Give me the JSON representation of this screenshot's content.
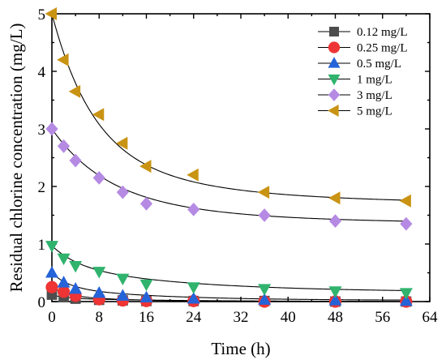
{
  "chart_data": {
    "type": "scatter",
    "xlabel": "Time (h)",
    "ylabel": "Residual chlorine concentration (mg/L)",
    "xlim": [
      0,
      64
    ],
    "ylim": [
      0,
      5
    ],
    "xticks": [
      "0",
      "8",
      "16",
      "24",
      "32",
      "40",
      "48",
      "56",
      "64"
    ],
    "yticks": [
      "0",
      "1",
      "2",
      "3",
      "4",
      "5"
    ],
    "legend_position": "top-right",
    "grid": false,
    "x": [
      0,
      2,
      4,
      8,
      12,
      16,
      24,
      36,
      48,
      60
    ],
    "series": [
      {
        "name": "0.12 mg/L",
        "marker": "square",
        "color": "#4d4d4d",
        "values": [
          0.12,
          0.08,
          0.05,
          0.03,
          0.02,
          0.01,
          0.01,
          0.01,
          0.0,
          0.0
        ],
        "fit": {
          "c": 0.0,
          "a1": 0.06,
          "k1": 0.5,
          "a2": 0.06,
          "k2": 0.05
        }
      },
      {
        "name": "0.25 mg/L",
        "marker": "circle",
        "color": "#ee3434",
        "values": [
          0.25,
          0.17,
          0.1,
          0.04,
          0.02,
          0.01,
          0.01,
          0.0,
          0.0,
          0.0
        ],
        "fit": {
          "c": 0.0,
          "a1": 0.13,
          "k1": 0.45,
          "a2": 0.12,
          "k2": 0.1
        }
      },
      {
        "name": "0.5 mg/L",
        "marker": "triangle-up",
        "color": "#2563d8",
        "values": [
          0.5,
          0.33,
          0.22,
          0.15,
          0.1,
          0.07,
          0.05,
          0.03,
          0.02,
          0.01
        ],
        "fit": {
          "c": 0.02,
          "a1": 0.25,
          "k1": 0.35,
          "a2": 0.23,
          "k2": 0.06
        }
      },
      {
        "name": "1 mg/L",
        "marker": "triangle-down",
        "color": "#2fb36d",
        "values": [
          0.97,
          0.75,
          0.62,
          0.52,
          0.4,
          0.3,
          0.25,
          0.22,
          0.18,
          0.15
        ],
        "fit": {
          "c": 0.16,
          "a1": 0.35,
          "k1": 0.22,
          "a2": 0.46,
          "k2": 0.045
        }
      },
      {
        "name": "3 mg/L",
        "marker": "diamond",
        "color": "#b58ae3",
        "values": [
          3.0,
          2.7,
          2.45,
          2.15,
          1.9,
          1.7,
          1.6,
          1.5,
          1.4,
          1.35
        ],
        "fit": {
          "c": 1.35,
          "a1": 1.15,
          "k1": 0.11,
          "a2": 0.5,
          "k2": 0.04
        }
      },
      {
        "name": "5 mg/L",
        "marker": "triangle-left",
        "color": "#c99313",
        "values": [
          5.0,
          4.2,
          3.65,
          3.25,
          2.75,
          2.35,
          2.2,
          1.9,
          1.8,
          1.75
        ],
        "fit": {
          "c": 1.7,
          "a1": 2.4,
          "k1": 0.145,
          "a2": 0.9,
          "k2": 0.045
        }
      }
    ]
  }
}
